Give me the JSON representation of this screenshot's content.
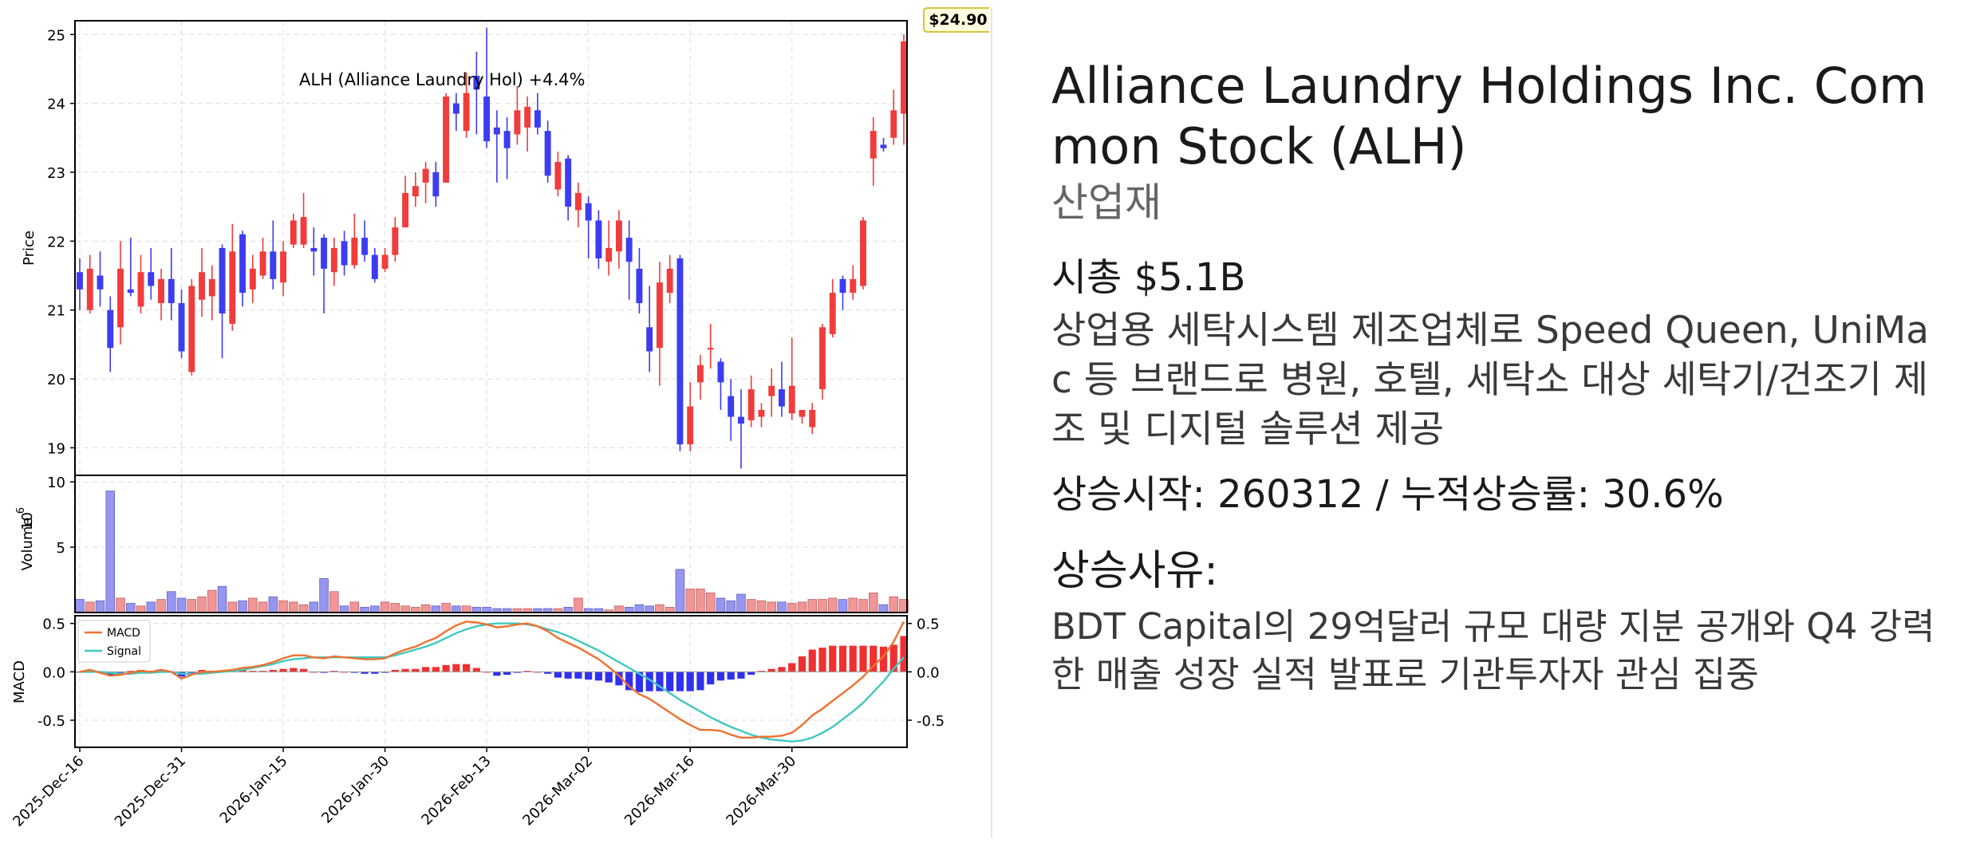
{
  "chart_data": {
    "type": "candlestick",
    "title": "ALH (Alliance Laundry Hol)  +4.4%",
    "last_price_label": "$24.90",
    "price_axis": {
      "label": "Price",
      "ylim": [
        18.6,
        25.2
      ],
      "ticks": [
        19,
        20,
        21,
        22,
        23,
        24,
        25
      ]
    },
    "volume_axis": {
      "label": "Volume",
      "unit_exp": "6",
      "ylim": [
        0,
        10.5
      ],
      "ticks": [
        5,
        10
      ]
    },
    "macd_axis": {
      "label": "MACD",
      "ylim": [
        -0.78,
        0.58
      ],
      "left_ticks": [
        "0.5",
        "0.0",
        "-0.5"
      ],
      "left_tick_values": [
        0.5,
        0,
        -0.5
      ],
      "right_ticks": [
        "0.5",
        "0.0",
        "-0.5"
      ],
      "right_tick_values": [
        0.5,
        0,
        -0.5
      ]
    },
    "x_tick_labels": [
      "2025-Dec-16",
      "2025-Dec-31",
      "2026-Jan-15",
      "2026-Jan-30",
      "2026-Feb-13",
      "2026-Mar-02",
      "2026-Mar-16",
      "2026-Mar-30"
    ],
    "x_tick_index": [
      0,
      10,
      20,
      30,
      40,
      50,
      60,
      70
    ],
    "legend": [
      "MACD",
      "Signal"
    ],
    "grid": true,
    "colors": {
      "up": "#f03c3c",
      "down": "#3c3cf0",
      "vol_up": "#f09696",
      "vol_down": "#9696f0",
      "macd": "#f07030",
      "signal": "#40c8c0",
      "hist_pos": "#f03030",
      "hist_neg": "#3030f0"
    },
    "candles": [
      [
        21.55,
        21.3,
        21.75,
        21.0
      ],
      [
        21.0,
        21.6,
        21.8,
        20.95
      ],
      [
        21.5,
        21.3,
        21.85,
        21.05
      ],
      [
        21.0,
        20.45,
        21.2,
        20.1
      ],
      [
        20.75,
        21.6,
        22.0,
        20.5
      ],
      [
        21.3,
        21.25,
        22.05,
        21.2
      ],
      [
        21.05,
        21.55,
        21.8,
        20.95
      ],
      [
        21.55,
        21.35,
        21.9,
        21.15
      ],
      [
        21.1,
        21.45,
        21.6,
        20.85
      ],
      [
        21.45,
        21.1,
        21.9,
        20.85
      ],
      [
        21.1,
        20.4,
        21.3,
        20.3
      ],
      [
        20.1,
        21.35,
        21.45,
        20.05
      ],
      [
        21.15,
        21.55,
        21.9,
        20.9
      ],
      [
        21.2,
        21.45,
        21.65,
        20.85
      ],
      [
        21.9,
        20.95,
        21.95,
        20.3
      ],
      [
        20.8,
        21.85,
        22.25,
        20.7
      ],
      [
        22.1,
        21.25,
        22.15,
        21.05
      ],
      [
        21.3,
        21.6,
        21.8,
        21.1
      ],
      [
        21.5,
        21.85,
        22.05,
        21.45
      ],
      [
        21.85,
        21.45,
        22.3,
        21.3
      ],
      [
        21.4,
        21.85,
        22.0,
        21.2
      ],
      [
        21.95,
        22.3,
        22.4,
        21.9
      ],
      [
        21.95,
        22.35,
        22.7,
        21.9
      ],
      [
        21.9,
        21.85,
        22.2,
        21.5
      ],
      [
        22.05,
        21.6,
        22.1,
        20.95
      ],
      [
        21.55,
        21.9,
        22.05,
        21.35
      ],
      [
        22.0,
        21.65,
        22.15,
        21.5
      ],
      [
        21.65,
        22.05,
        22.4,
        21.6
      ],
      [
        22.05,
        21.8,
        22.3,
        21.7
      ],
      [
        21.8,
        21.45,
        21.9,
        21.4
      ],
      [
        21.6,
        21.8,
        21.9,
        21.55
      ],
      [
        21.8,
        22.2,
        22.35,
        21.7
      ],
      [
        22.2,
        22.7,
        22.95,
        22.2
      ],
      [
        22.65,
        22.8,
        23.0,
        22.5
      ],
      [
        22.85,
        23.05,
        23.15,
        22.55
      ],
      [
        23.0,
        22.65,
        23.15,
        22.5
      ],
      [
        22.85,
        24.1,
        24.15,
        22.85
      ],
      [
        24.0,
        23.85,
        24.15,
        23.6
      ],
      [
        23.6,
        24.15,
        24.45,
        23.5
      ],
      [
        24.4,
        24.2,
        24.75,
        23.55
      ],
      [
        24.1,
        23.45,
        25.1,
        23.35
      ],
      [
        23.65,
        23.55,
        23.9,
        22.85
      ],
      [
        23.6,
        23.35,
        23.8,
        22.9
      ],
      [
        23.55,
        23.9,
        24.25,
        23.4
      ],
      [
        23.65,
        23.95,
        24.1,
        23.3
      ],
      [
        23.9,
        23.65,
        24.15,
        23.55
      ],
      [
        23.6,
        22.95,
        23.75,
        22.85
      ],
      [
        22.75,
        23.15,
        23.3,
        22.65
      ],
      [
        23.2,
        22.5,
        23.25,
        22.3
      ],
      [
        22.45,
        22.7,
        22.85,
        22.2
      ],
      [
        22.55,
        22.3,
        22.65,
        21.75
      ],
      [
        22.3,
        21.75,
        22.45,
        21.6
      ],
      [
        21.7,
        21.9,
        22.3,
        21.5
      ],
      [
        21.85,
        22.3,
        22.45,
        21.6
      ],
      [
        22.05,
        21.7,
        22.3,
        21.15
      ],
      [
        21.6,
        21.1,
        21.9,
        20.95
      ],
      [
        20.75,
        20.4,
        21.35,
        20.1
      ],
      [
        20.45,
        21.4,
        21.7,
        19.9
      ],
      [
        21.25,
        21.6,
        21.8,
        21.1
      ],
      [
        21.75,
        19.05,
        21.8,
        18.95
      ],
      [
        19.05,
        19.6,
        19.95,
        18.95
      ],
      [
        19.95,
        20.2,
        20.35,
        19.7
      ],
      [
        20.45,
        20.45,
        20.8,
        20.15
      ],
      [
        20.25,
        19.95,
        20.3,
        19.55
      ],
      [
        19.75,
        19.45,
        20.0,
        19.1
      ],
      [
        19.45,
        19.35,
        19.85,
        18.7
      ],
      [
        19.4,
        19.85,
        20.05,
        19.3
      ],
      [
        19.45,
        19.55,
        19.65,
        19.3
      ],
      [
        19.75,
        19.9,
        20.15,
        19.45
      ],
      [
        19.85,
        19.6,
        20.25,
        19.45
      ],
      [
        19.5,
        19.9,
        20.6,
        19.4
      ],
      [
        19.45,
        19.55,
        19.55,
        19.35
      ],
      [
        19.3,
        19.55,
        19.65,
        19.2
      ],
      [
        19.85,
        20.75,
        20.8,
        19.7
      ],
      [
        20.65,
        21.25,
        21.45,
        20.6
      ],
      [
        21.45,
        21.25,
        21.5,
        21.0
      ],
      [
        21.25,
        21.45,
        21.65,
        21.15
      ],
      [
        21.35,
        22.3,
        22.35,
        21.3
      ],
      [
        23.2,
        23.6,
        23.8,
        22.8
      ],
      [
        23.4,
        23.35,
        23.5,
        23.3
      ],
      [
        23.5,
        23.9,
        24.2,
        23.4
      ],
      [
        23.85,
        24.9,
        25.0,
        23.4
      ]
    ],
    "volume": [
      1.0,
      0.8,
      0.9,
      9.3,
      1.1,
      0.7,
      0.5,
      0.8,
      1.0,
      1.6,
      1.1,
      1.0,
      1.2,
      1.7,
      2.0,
      0.8,
      0.9,
      1.1,
      0.8,
      1.2,
      0.9,
      0.8,
      0.6,
      0.8,
      2.6,
      1.6,
      0.5,
      0.8,
      0.4,
      0.5,
      0.8,
      0.7,
      0.5,
      0.4,
      0.6,
      0.5,
      0.7,
      0.5,
      0.5,
      0.4,
      0.4,
      0.3,
      0.3,
      0.3,
      0.3,
      0.3,
      0.3,
      0.3,
      0.4,
      1.1,
      0.3,
      0.3,
      0.2,
      0.5,
      0.4,
      0.6,
      0.5,
      0.6,
      0.4,
      3.3,
      1.8,
      1.8,
      1.5,
      1.1,
      0.9,
      1.4,
      1.0,
      0.9,
      0.8,
      0.8,
      0.7,
      0.8,
      1.0,
      1.0,
      1.1,
      1.0,
      1.1,
      1.0,
      1.5,
      0.6,
      1.2,
      1.0
    ],
    "macd": [
      0.0,
      0.02,
      -0.01,
      -0.04,
      -0.03,
      -0.01,
      0.01,
      0.0,
      0.02,
      0.0,
      -0.07,
      -0.03,
      0.0,
      0.0,
      0.01,
      0.02,
      0.04,
      0.05,
      0.07,
      0.1,
      0.14,
      0.17,
      0.17,
      0.15,
      0.14,
      0.16,
      0.15,
      0.14,
      0.13,
      0.13,
      0.14,
      0.19,
      0.23,
      0.26,
      0.31,
      0.35,
      0.42,
      0.48,
      0.52,
      0.51,
      0.49,
      0.46,
      0.47,
      0.49,
      0.5,
      0.47,
      0.42,
      0.35,
      0.3,
      0.25,
      0.19,
      0.13,
      0.05,
      -0.04,
      -0.15,
      -0.23,
      -0.28,
      -0.35,
      -0.42,
      -0.49,
      -0.55,
      -0.6,
      -0.6,
      -0.61,
      -0.65,
      -0.68,
      -0.68,
      -0.67,
      -0.67,
      -0.66,
      -0.63,
      -0.55,
      -0.45,
      -0.38,
      -0.3,
      -0.22,
      -0.14,
      -0.05,
      0.06,
      0.16,
      0.31,
      0.52
    ],
    "signal": [
      0.0,
      0.0,
      0.0,
      -0.01,
      -0.02,
      -0.02,
      -0.01,
      -0.01,
      0.0,
      0.0,
      -0.02,
      -0.02,
      -0.02,
      -0.01,
      0.0,
      0.01,
      0.02,
      0.04,
      0.06,
      0.08,
      0.11,
      0.13,
      0.14,
      0.15,
      0.15,
      0.15,
      0.15,
      0.15,
      0.15,
      0.15,
      0.15,
      0.17,
      0.2,
      0.23,
      0.26,
      0.3,
      0.35,
      0.4,
      0.44,
      0.47,
      0.49,
      0.5,
      0.5,
      0.5,
      0.49,
      0.47,
      0.44,
      0.41,
      0.37,
      0.32,
      0.27,
      0.22,
      0.16,
      0.1,
      0.04,
      -0.02,
      -0.08,
      -0.15,
      -0.22,
      -0.29,
      -0.35,
      -0.41,
      -0.47,
      -0.52,
      -0.57,
      -0.61,
      -0.65,
      -0.68,
      -0.7,
      -0.71,
      -0.72,
      -0.71,
      -0.68,
      -0.63,
      -0.57,
      -0.49,
      -0.41,
      -0.32,
      -0.21,
      -0.1,
      0.03,
      0.15
    ]
  },
  "info": {
    "title": "Alliance Laundry Holdings Inc. Common Stock (ALH)",
    "sector": "산업재",
    "market_cap": "시총 $5.1B",
    "description": "상업용 세탁시스템 제조업체로 Speed Queen, UniMac 등 브랜드로 병원, 호텔, 세탁소 대상 세탁기/건조기 제조 및 디지털 솔루션 제공",
    "rally": "상승시작: 260312 / 누적상승률: 30.6%",
    "reason_label": "상승사유:",
    "reason": "BDT Capital의 29억달러 규모 대량 지분 공개와 Q4 강력한 매출 성장 실적 발표로 기관투자자 관심 집중"
  }
}
